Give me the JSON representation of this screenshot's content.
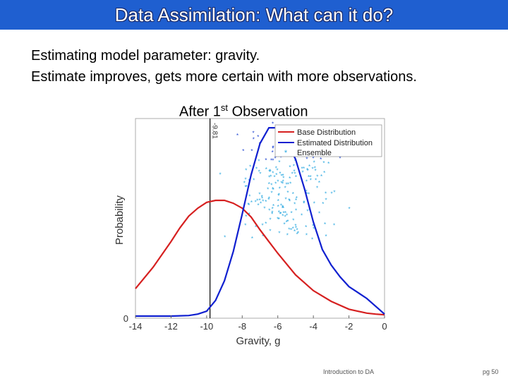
{
  "header": {
    "title": "Data Assimilation: What can it do?"
  },
  "bullets": [
    "Estimating model parameter: gravity.",
    "Estimate improves, gets more certain with more observations."
  ],
  "plot_title": {
    "main": "After 1",
    "sup": "st",
    "rest": " Observation"
  },
  "chart_data": {
    "type": "line",
    "xlabel": "Gravity, g",
    "ylabel": "Probability",
    "xlim": [
      -14,
      0
    ],
    "ylim": [
      0,
      1
    ],
    "xticks": [
      "-14",
      "-12",
      "-10",
      "-8",
      "-6",
      "-4",
      "-2",
      "0"
    ],
    "yticks": [
      "0"
    ],
    "vline": {
      "x": -9.81,
      "label": "-9.81"
    },
    "legend": [
      "Base Distribution",
      "Estimated Distribution",
      "Ensemble"
    ],
    "colors": {
      "base": "#d62020",
      "estimated": "#1020d0",
      "ensemble": "#2aa8e0",
      "ensemble_dark": "#1a40d0"
    },
    "series": [
      {
        "name": "Base Distribution",
        "x": [
          -14,
          -13,
          -12,
          -11.5,
          -11,
          -10.5,
          -10,
          -9.5,
          -9,
          -8.5,
          -8,
          -7.5,
          -7,
          -6.5,
          -6,
          -5,
          -4,
          -3,
          -2,
          -1,
          -0.5,
          0
        ],
        "y": [
          0.14,
          0.25,
          0.38,
          0.45,
          0.51,
          0.55,
          0.58,
          0.59,
          0.59,
          0.575,
          0.55,
          0.505,
          0.44,
          0.38,
          0.32,
          0.21,
          0.13,
          0.075,
          0.035,
          0.015,
          0.01,
          0.007
        ]
      },
      {
        "name": "Estimated Distribution",
        "x": [
          -14,
          -12,
          -11,
          -10.5,
          -10,
          -9.5,
          -9,
          -8.5,
          -8,
          -7.5,
          -7,
          -6.5,
          -6,
          -5.5,
          -5,
          -4.5,
          -4,
          -3.5,
          -3,
          -2.5,
          -2,
          -1.5,
          -1,
          -0.5,
          0
        ],
        "y": [
          0,
          0,
          0.003,
          0.01,
          0.025,
          0.08,
          0.18,
          0.33,
          0.52,
          0.72,
          0.88,
          0.96,
          0.96,
          0.89,
          0.8,
          0.65,
          0.48,
          0.34,
          0.26,
          0.2,
          0.15,
          0.12,
          0.09,
          0.05,
          0.01
        ]
      }
    ]
  },
  "footer": {
    "left": "Introduction to DA",
    "right": "pg 50"
  }
}
